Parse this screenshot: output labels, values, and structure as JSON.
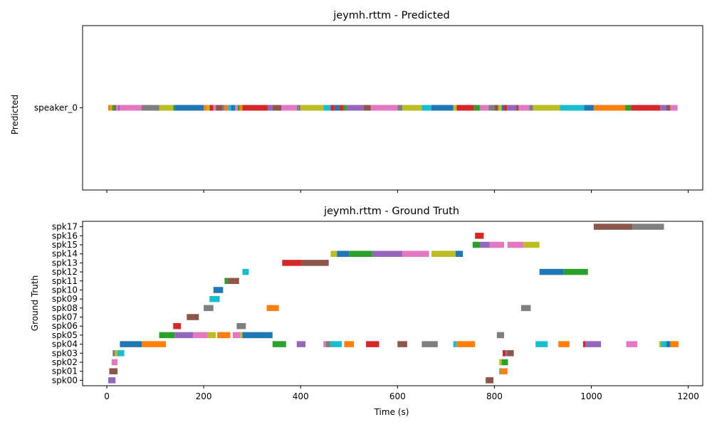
{
  "chart_data": [
    {
      "type": "timeline",
      "title": "jeymh.rttm - Predicted",
      "ylabel": "Predicted",
      "xlabel": "",
      "xlim": [
        -50,
        1230
      ],
      "xticks": [
        0,
        200,
        400,
        600,
        800,
        1000,
        1200
      ],
      "show_xtick_labels": false,
      "grid": false,
      "categories": [
        "speaker_0"
      ],
      "segments": [
        {
          "speaker": "speaker_0",
          "start": 3,
          "end": 8,
          "color": "#ff7f0e"
        },
        {
          "speaker": "speaker_0",
          "start": 8,
          "end": 11,
          "color": "#bcbd22"
        },
        {
          "speaker": "speaker_0",
          "start": 11,
          "end": 15,
          "color": "#2ca02c"
        },
        {
          "speaker": "speaker_0",
          "start": 15,
          "end": 19,
          "color": "#8c564b"
        },
        {
          "speaker": "speaker_0",
          "start": 19,
          "end": 23,
          "color": "#e377c2"
        },
        {
          "speaker": "speaker_0",
          "start": 23,
          "end": 27,
          "color": "#9467bd"
        },
        {
          "speaker": "speaker_0",
          "start": 27,
          "end": 72,
          "color": "#e377c2"
        },
        {
          "speaker": "speaker_0",
          "start": 72,
          "end": 108,
          "color": "#7f7f7f"
        },
        {
          "speaker": "speaker_0",
          "start": 108,
          "end": 137,
          "color": "#bcbd22"
        },
        {
          "speaker": "speaker_0",
          "start": 137,
          "end": 140,
          "color": "#2ca02c"
        },
        {
          "speaker": "speaker_0",
          "start": 140,
          "end": 200,
          "color": "#1f77b4"
        },
        {
          "speaker": "speaker_0",
          "start": 200,
          "end": 207,
          "color": "#ff7f0e"
        },
        {
          "speaker": "speaker_0",
          "start": 207,
          "end": 212,
          "color": "#bcbd22"
        },
        {
          "speaker": "speaker_0",
          "start": 212,
          "end": 220,
          "color": "#d62728"
        },
        {
          "speaker": "speaker_0",
          "start": 220,
          "end": 225,
          "color": "#e377c2"
        },
        {
          "speaker": "speaker_0",
          "start": 225,
          "end": 238,
          "color": "#8c564b"
        },
        {
          "speaker": "speaker_0",
          "start": 238,
          "end": 243,
          "color": "#7f7f7f"
        },
        {
          "speaker": "speaker_0",
          "start": 243,
          "end": 250,
          "color": "#ff7f0e"
        },
        {
          "speaker": "speaker_0",
          "start": 250,
          "end": 256,
          "color": "#17becf"
        },
        {
          "speaker": "speaker_0",
          "start": 256,
          "end": 265,
          "color": "#1f77b4"
        },
        {
          "speaker": "speaker_0",
          "start": 265,
          "end": 270,
          "color": "#e377c2"
        },
        {
          "speaker": "speaker_0",
          "start": 270,
          "end": 274,
          "color": "#2ca02c"
        },
        {
          "speaker": "speaker_0",
          "start": 274,
          "end": 280,
          "color": "#ff7f0e"
        },
        {
          "speaker": "speaker_0",
          "start": 280,
          "end": 332,
          "color": "#d62728"
        },
        {
          "speaker": "speaker_0",
          "start": 332,
          "end": 342,
          "color": "#9467bd"
        },
        {
          "speaker": "speaker_0",
          "start": 342,
          "end": 360,
          "color": "#8c564b"
        },
        {
          "speaker": "speaker_0",
          "start": 360,
          "end": 392,
          "color": "#e377c2"
        },
        {
          "speaker": "speaker_0",
          "start": 392,
          "end": 400,
          "color": "#7f7f7f"
        },
        {
          "speaker": "speaker_0",
          "start": 400,
          "end": 447,
          "color": "#bcbd22"
        },
        {
          "speaker": "speaker_0",
          "start": 447,
          "end": 462,
          "color": "#17becf"
        },
        {
          "speaker": "speaker_0",
          "start": 462,
          "end": 470,
          "color": "#d62728"
        },
        {
          "speaker": "speaker_0",
          "start": 470,
          "end": 480,
          "color": "#1f77b4"
        },
        {
          "speaker": "speaker_0",
          "start": 480,
          "end": 488,
          "color": "#d62728"
        },
        {
          "speaker": "speaker_0",
          "start": 488,
          "end": 495,
          "color": "#2ca02c"
        },
        {
          "speaker": "speaker_0",
          "start": 495,
          "end": 530,
          "color": "#9467bd"
        },
        {
          "speaker": "speaker_0",
          "start": 530,
          "end": 545,
          "color": "#8c564b"
        },
        {
          "speaker": "speaker_0",
          "start": 545,
          "end": 600,
          "color": "#e377c2"
        },
        {
          "speaker": "speaker_0",
          "start": 600,
          "end": 610,
          "color": "#7f7f7f"
        },
        {
          "speaker": "speaker_0",
          "start": 610,
          "end": 650,
          "color": "#bcbd22"
        },
        {
          "speaker": "speaker_0",
          "start": 650,
          "end": 670,
          "color": "#17becf"
        },
        {
          "speaker": "speaker_0",
          "start": 670,
          "end": 715,
          "color": "#1f77b4"
        },
        {
          "speaker": "speaker_0",
          "start": 715,
          "end": 722,
          "color": "#bcbd22"
        },
        {
          "speaker": "speaker_0",
          "start": 722,
          "end": 758,
          "color": "#d62728"
        },
        {
          "speaker": "speaker_0",
          "start": 758,
          "end": 770,
          "color": "#2ca02c"
        },
        {
          "speaker": "speaker_0",
          "start": 770,
          "end": 788,
          "color": "#e377c2"
        },
        {
          "speaker": "speaker_0",
          "start": 788,
          "end": 800,
          "color": "#7f7f7f"
        },
        {
          "speaker": "speaker_0",
          "start": 800,
          "end": 808,
          "color": "#8c564b"
        },
        {
          "speaker": "speaker_0",
          "start": 808,
          "end": 815,
          "color": "#bcbd22"
        },
        {
          "speaker": "speaker_0",
          "start": 815,
          "end": 820,
          "color": "#1f77b4"
        },
        {
          "speaker": "speaker_0",
          "start": 820,
          "end": 826,
          "color": "#d62728"
        },
        {
          "speaker": "speaker_0",
          "start": 826,
          "end": 845,
          "color": "#9467bd"
        },
        {
          "speaker": "speaker_0",
          "start": 845,
          "end": 850,
          "color": "#8c564b"
        },
        {
          "speaker": "speaker_0",
          "start": 850,
          "end": 872,
          "color": "#e377c2"
        },
        {
          "speaker": "speaker_0",
          "start": 872,
          "end": 880,
          "color": "#7f7f7f"
        },
        {
          "speaker": "speaker_0",
          "start": 880,
          "end": 935,
          "color": "#bcbd22"
        },
        {
          "speaker": "speaker_0",
          "start": 935,
          "end": 985,
          "color": "#17becf"
        },
        {
          "speaker": "speaker_0",
          "start": 985,
          "end": 1005,
          "color": "#1f77b4"
        },
        {
          "speaker": "speaker_0",
          "start": 1005,
          "end": 1070,
          "color": "#ff7f0e"
        },
        {
          "speaker": "speaker_0",
          "start": 1070,
          "end": 1082,
          "color": "#2ca02c"
        },
        {
          "speaker": "speaker_0",
          "start": 1082,
          "end": 1142,
          "color": "#d62728"
        },
        {
          "speaker": "speaker_0",
          "start": 1142,
          "end": 1155,
          "color": "#9467bd"
        },
        {
          "speaker": "speaker_0",
          "start": 1155,
          "end": 1163,
          "color": "#8c564b"
        },
        {
          "speaker": "speaker_0",
          "start": 1163,
          "end": 1178,
          "color": "#e377c2"
        }
      ]
    },
    {
      "type": "timeline",
      "title": "jeymh.rttm - Ground Truth",
      "ylabel": "Ground Truth",
      "xlabel": "Time (s)",
      "xlim": [
        -50,
        1230
      ],
      "xticks": [
        0,
        200,
        400,
        600,
        800,
        1000,
        1200
      ],
      "show_xtick_labels": true,
      "grid": false,
      "categories": [
        "spk00",
        "spk01",
        "spk02",
        "spk03",
        "spk04",
        "spk05",
        "spk06",
        "spk07",
        "spk08",
        "spk09",
        "spk10",
        "spk11",
        "spk12",
        "spk13",
        "spk14",
        "spk15",
        "spk16",
        "spk17"
      ],
      "segments": [
        {
          "speaker": "spk00",
          "start": 3,
          "end": 18,
          "color": "#9467bd"
        },
        {
          "speaker": "spk00",
          "start": 782,
          "end": 798,
          "color": "#8c564b"
        },
        {
          "speaker": "spk01",
          "start": 5,
          "end": 22,
          "color": "#8c564b"
        },
        {
          "speaker": "spk01",
          "start": 810,
          "end": 812,
          "color": "#17becf"
        },
        {
          "speaker": "spk01",
          "start": 812,
          "end": 827,
          "color": "#ff7f0e"
        },
        {
          "speaker": "spk02",
          "start": 10,
          "end": 22,
          "color": "#e377c2"
        },
        {
          "speaker": "spk02",
          "start": 810,
          "end": 815,
          "color": "#bcbd22"
        },
        {
          "speaker": "spk02",
          "start": 815,
          "end": 828,
          "color": "#2ca02c"
        },
        {
          "speaker": "spk03",
          "start": 12,
          "end": 17,
          "color": "#7f7f7f"
        },
        {
          "speaker": "spk03",
          "start": 17,
          "end": 22,
          "color": "#bcbd22"
        },
        {
          "speaker": "spk03",
          "start": 22,
          "end": 36,
          "color": "#17becf"
        },
        {
          "speaker": "spk03",
          "start": 817,
          "end": 823,
          "color": "#d62728"
        },
        {
          "speaker": "spk03",
          "start": 823,
          "end": 826,
          "color": "#9467bd"
        },
        {
          "speaker": "spk03",
          "start": 826,
          "end": 840,
          "color": "#8c564b"
        },
        {
          "speaker": "spk04",
          "start": 27,
          "end": 72,
          "color": "#1f77b4"
        },
        {
          "speaker": "spk04",
          "start": 72,
          "end": 122,
          "color": "#ff7f0e"
        },
        {
          "speaker": "spk04",
          "start": 342,
          "end": 370,
          "color": "#2ca02c"
        },
        {
          "speaker": "spk04",
          "start": 392,
          "end": 410,
          "color": "#9467bd"
        },
        {
          "speaker": "spk04",
          "start": 447,
          "end": 452,
          "color": "#e377c2"
        },
        {
          "speaker": "spk04",
          "start": 452,
          "end": 462,
          "color": "#7f7f7f"
        },
        {
          "speaker": "spk04",
          "start": 462,
          "end": 485,
          "color": "#17becf"
        },
        {
          "speaker": "spk04",
          "start": 490,
          "end": 510,
          "color": "#ff7f0e"
        },
        {
          "speaker": "spk04",
          "start": 535,
          "end": 562,
          "color": "#d62728"
        },
        {
          "speaker": "spk04",
          "start": 600,
          "end": 620,
          "color": "#8c564b"
        },
        {
          "speaker": "spk04",
          "start": 650,
          "end": 683,
          "color": "#7f7f7f"
        },
        {
          "speaker": "spk04",
          "start": 715,
          "end": 722,
          "color": "#17becf"
        },
        {
          "speaker": "spk04",
          "start": 722,
          "end": 760,
          "color": "#ff7f0e"
        },
        {
          "speaker": "spk04",
          "start": 885,
          "end": 910,
          "color": "#17becf"
        },
        {
          "speaker": "spk04",
          "start": 932,
          "end": 955,
          "color": "#ff7f0e"
        },
        {
          "speaker": "spk04",
          "start": 983,
          "end": 988,
          "color": "#d62728"
        },
        {
          "speaker": "spk04",
          "start": 988,
          "end": 1020,
          "color": "#9467bd"
        },
        {
          "speaker": "spk04",
          "start": 1072,
          "end": 1095,
          "color": "#e377c2"
        },
        {
          "speaker": "spk04",
          "start": 1140,
          "end": 1144,
          "color": "#bcbd22"
        },
        {
          "speaker": "spk04",
          "start": 1144,
          "end": 1155,
          "color": "#17becf"
        },
        {
          "speaker": "spk04",
          "start": 1155,
          "end": 1163,
          "color": "#1f77b4"
        },
        {
          "speaker": "spk04",
          "start": 1163,
          "end": 1180,
          "color": "#ff7f0e"
        },
        {
          "speaker": "spk05",
          "start": 108,
          "end": 140,
          "color": "#2ca02c"
        },
        {
          "speaker": "spk05",
          "start": 140,
          "end": 178,
          "color": "#9467bd"
        },
        {
          "speaker": "spk05",
          "start": 178,
          "end": 208,
          "color": "#e377c2"
        },
        {
          "speaker": "spk05",
          "start": 208,
          "end": 225,
          "color": "#bcbd22"
        },
        {
          "speaker": "spk05",
          "start": 228,
          "end": 255,
          "color": "#ff7f0e"
        },
        {
          "speaker": "spk05",
          "start": 260,
          "end": 275,
          "color": "#e377c2"
        },
        {
          "speaker": "spk05",
          "start": 275,
          "end": 280,
          "color": "#bcbd22"
        },
        {
          "speaker": "spk05",
          "start": 280,
          "end": 342,
          "color": "#1f77b4"
        },
        {
          "speaker": "spk05",
          "start": 805,
          "end": 820,
          "color": "#7f7f7f"
        },
        {
          "speaker": "spk06",
          "start": 137,
          "end": 153,
          "color": "#d62728"
        },
        {
          "speaker": "spk06",
          "start": 268,
          "end": 287,
          "color": "#7f7f7f"
        },
        {
          "speaker": "spk07",
          "start": 165,
          "end": 190,
          "color": "#8c564b"
        },
        {
          "speaker": "spk08",
          "start": 200,
          "end": 220,
          "color": "#7f7f7f"
        },
        {
          "speaker": "spk08",
          "start": 330,
          "end": 355,
          "color": "#ff7f0e"
        },
        {
          "speaker": "spk08",
          "start": 855,
          "end": 875,
          "color": "#7f7f7f"
        },
        {
          "speaker": "spk09",
          "start": 212,
          "end": 233,
          "color": "#17becf"
        },
        {
          "speaker": "spk10",
          "start": 220,
          "end": 240,
          "color": "#1f77b4"
        },
        {
          "speaker": "spk11",
          "start": 243,
          "end": 250,
          "color": "#2ca02c"
        },
        {
          "speaker": "spk11",
          "start": 250,
          "end": 273,
          "color": "#8c564b"
        },
        {
          "speaker": "spk12",
          "start": 280,
          "end": 293,
          "color": "#17becf"
        },
        {
          "speaker": "spk12",
          "start": 893,
          "end": 943,
          "color": "#1f77b4"
        },
        {
          "speaker": "spk12",
          "start": 943,
          "end": 993,
          "color": "#2ca02c"
        },
        {
          "speaker": "spk13",
          "start": 362,
          "end": 402,
          "color": "#d62728"
        },
        {
          "speaker": "spk13",
          "start": 402,
          "end": 458,
          "color": "#8c564b"
        },
        {
          "speaker": "spk14",
          "start": 462,
          "end": 475,
          "color": "#bcbd22"
        },
        {
          "speaker": "spk14",
          "start": 475,
          "end": 500,
          "color": "#1f77b4"
        },
        {
          "speaker": "spk14",
          "start": 500,
          "end": 548,
          "color": "#2ca02c"
        },
        {
          "speaker": "spk14",
          "start": 548,
          "end": 610,
          "color": "#9467bd"
        },
        {
          "speaker": "spk14",
          "start": 610,
          "end": 665,
          "color": "#e377c2"
        },
        {
          "speaker": "spk14",
          "start": 670,
          "end": 720,
          "color": "#bcbd22"
        },
        {
          "speaker": "spk14",
          "start": 720,
          "end": 735,
          "color": "#1f77b4"
        },
        {
          "speaker": "spk15",
          "start": 755,
          "end": 770,
          "color": "#2ca02c"
        },
        {
          "speaker": "spk15",
          "start": 770,
          "end": 790,
          "color": "#9467bd"
        },
        {
          "speaker": "spk15",
          "start": 790,
          "end": 820,
          "color": "#e377c2"
        },
        {
          "speaker": "spk15",
          "start": 827,
          "end": 860,
          "color": "#e377c2"
        },
        {
          "speaker": "spk15",
          "start": 860,
          "end": 893,
          "color": "#bcbd22"
        },
        {
          "speaker": "spk16",
          "start": 760,
          "end": 778,
          "color": "#d62728"
        },
        {
          "speaker": "spk17",
          "start": 1005,
          "end": 1085,
          "color": "#8c564b"
        },
        {
          "speaker": "spk17",
          "start": 1085,
          "end": 1150,
          "color": "#7f7f7f"
        }
      ]
    }
  ]
}
